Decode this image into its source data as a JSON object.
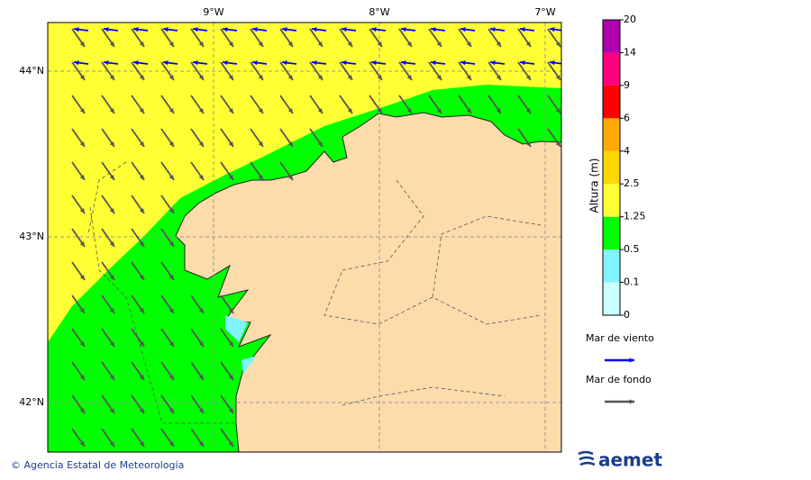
{
  "map": {
    "lon_ticks": [
      {
        "value": -9,
        "label": "9°W"
      },
      {
        "value": -8,
        "label": "8°W"
      },
      {
        "value": -7,
        "label": "7°W"
      }
    ],
    "lat_ticks": [
      {
        "value": 44,
        "label": "44°N"
      },
      {
        "value": 43,
        "label": "43°N"
      },
      {
        "value": 42,
        "label": "42°N"
      }
    ]
  },
  "colorbar": {
    "title": "Altura (m)",
    "levels": [
      0,
      0.1,
      0.5,
      1.25,
      2.5,
      4,
      6,
      9,
      14,
      20
    ],
    "colors": [
      "#ccffff",
      "#80f4ff",
      "#00ff00",
      "#ffff33",
      "#ffd700",
      "#ffaa00",
      "#ff0000",
      "#ff0080",
      "#b000b0"
    ]
  },
  "legend": [
    {
      "label": "Mar de viento",
      "color": "#0000ff"
    },
    {
      "label": "Mar de fondo",
      "color": "#555555"
    }
  ],
  "footer": "© Agencia Estatal de Meteorología",
  "logo": "aemet"
}
